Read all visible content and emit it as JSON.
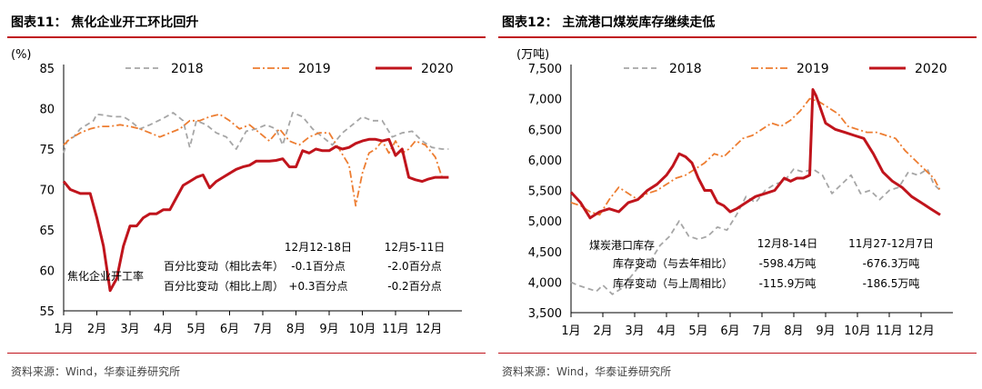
{
  "chart_data": [
    {
      "type": "line",
      "title": "图表11： 焦化企业开工环比回升",
      "ylabel": "(%)",
      "ylim": [
        55,
        85
      ],
      "yticks": [
        55,
        60,
        65,
        70,
        75,
        80,
        85
      ],
      "x_ticklabels": [
        "1月",
        "2月",
        "3月",
        "4月",
        "5月",
        "6月",
        "7月",
        "8月",
        "9月",
        "10月",
        "11月",
        "12月"
      ],
      "legend": "top",
      "series": [
        {
          "name": "2018",
          "style": "dashed",
          "color": "#a6a6a6",
          "x": [
            1.0,
            1.1,
            1.3,
            1.5,
            1.7,
            1.9,
            2.0,
            2.2,
            2.5,
            2.8,
            3.0,
            3.3,
            3.6,
            4.0,
            4.3,
            4.6,
            4.8,
            5.0,
            5.3,
            5.6,
            5.9,
            6.2,
            6.5,
            6.8,
            7.1,
            7.4,
            7.6,
            7.9,
            8.2,
            8.5,
            8.8,
            9.1,
            9.4,
            9.7,
            10.0,
            10.3,
            10.6,
            10.9,
            11.2,
            11.5,
            11.8,
            12.1,
            12.4,
            12.6
          ],
          "values": [
            74.5,
            76.0,
            76.5,
            77.5,
            78.0,
            78.5,
            79.3,
            79.2,
            79.0,
            79.0,
            78.5,
            77.5,
            78.0,
            78.8,
            79.5,
            78.5,
            75.2,
            78.5,
            78.0,
            77.0,
            76.5,
            75.0,
            77.2,
            77.5,
            78.0,
            77.5,
            75.5,
            79.5,
            79.0,
            77.5,
            76.5,
            75.5,
            77.0,
            78.0,
            79.0,
            78.5,
            78.5,
            76.5,
            77.0,
            77.2,
            76.0,
            75.2,
            75.0,
            75.0
          ]
        },
        {
          "name": "2019",
          "style": "dashdot",
          "color": "#ed7d31",
          "x": [
            1.0,
            1.2,
            1.5,
            1.8,
            2.1,
            2.4,
            2.7,
            3.0,
            3.3,
            3.6,
            3.9,
            4.2,
            4.5,
            4.8,
            5.1,
            5.4,
            5.7,
            6.0,
            6.3,
            6.6,
            6.9,
            7.2,
            7.5,
            7.8,
            8.1,
            8.4,
            8.7,
            9.0,
            9.3,
            9.6,
            9.8,
            10.0,
            10.2,
            10.4,
            10.6,
            10.8,
            11.0,
            11.2,
            11.4,
            11.6,
            11.9,
            12.2,
            12.4,
            12.6
          ],
          "values": [
            75.5,
            76.3,
            77.0,
            77.5,
            77.8,
            77.8,
            78.0,
            77.8,
            77.5,
            77.0,
            76.5,
            77.0,
            77.5,
            78.5,
            78.5,
            79.0,
            79.3,
            78.5,
            77.5,
            78.0,
            77.0,
            76.0,
            77.5,
            76.0,
            75.5,
            76.5,
            77.0,
            77.0,
            75.0,
            73.0,
            68.0,
            72.0,
            74.5,
            75.0,
            76.0,
            74.5,
            76.0,
            74.5,
            75.0,
            76.0,
            75.5,
            74.0,
            71.5,
            71.5
          ]
        },
        {
          "name": "2020",
          "style": "solid",
          "color": "#c0141c",
          "x": [
            1.0,
            1.2,
            1.5,
            1.8,
            2.0,
            2.2,
            2.4,
            2.6,
            2.8,
            3.0,
            3.2,
            3.4,
            3.6,
            3.8,
            4.0,
            4.2,
            4.4,
            4.6,
            4.8,
            5.0,
            5.2,
            5.4,
            5.6,
            5.8,
            6.0,
            6.2,
            6.4,
            6.6,
            6.8,
            7.0,
            7.2,
            7.4,
            7.6,
            7.8,
            8.0,
            8.2,
            8.4,
            8.6,
            8.8,
            9.0,
            9.2,
            9.4,
            9.6,
            9.8,
            10.0,
            10.2,
            10.4,
            10.6,
            10.8,
            11.0,
            11.2,
            11.4,
            11.6,
            11.8,
            12.0,
            12.2,
            12.4,
            12.6
          ],
          "values": [
            71.0,
            70.0,
            69.5,
            69.5,
            66.5,
            63.0,
            57.5,
            59.0,
            63.0,
            65.5,
            65.5,
            66.5,
            67.0,
            67.0,
            67.5,
            67.5,
            69.0,
            70.5,
            71.0,
            71.5,
            71.8,
            70.2,
            71.0,
            71.5,
            72.0,
            72.5,
            72.8,
            73.0,
            73.5,
            73.5,
            73.5,
            73.6,
            73.8,
            72.8,
            72.8,
            74.8,
            74.5,
            75.0,
            74.8,
            74.8,
            75.3,
            75.0,
            75.2,
            75.7,
            76.0,
            76.2,
            76.2,
            76.0,
            76.2,
            74.2,
            75.0,
            71.5,
            71.2,
            71.0,
            71.3,
            71.5,
            71.5,
            71.5
          ]
        }
      ],
      "annotation": {
        "label": "焦化企业开工率",
        "col_headers": [
          "12月12-18日",
          "12月5-11日"
        ],
        "rows": [
          {
            "label": "百分比变动（相比去年）",
            "v1": "-0.1百分点",
            "v2": "-2.0百分点"
          },
          {
            "label": "百分比变动（相比上周）",
            "v1": "+0.3百分点",
            "v2": "-0.2百分点"
          }
        ]
      },
      "source": "资料来源：Wind，华泰证券研究所"
    },
    {
      "type": "line",
      "title": "图表12： 主流港口煤炭库存继续走低",
      "ylabel": "(万吨)",
      "ylim": [
        3500,
        7500
      ],
      "yticks": [
        3500,
        4000,
        4500,
        5000,
        5500,
        6000,
        6500,
        7000,
        7500
      ],
      "x_ticklabels": [
        "1月",
        "2月",
        "3月",
        "4月",
        "5月",
        "6月",
        "7月",
        "8月",
        "9月",
        "10月",
        "11月",
        "12月"
      ],
      "legend": "top",
      "series": [
        {
          "name": "2018",
          "style": "dashed",
          "color": "#a6a6a6",
          "x": [
            1.0,
            1.2,
            1.5,
            1.8,
            2.0,
            2.3,
            2.6,
            2.9,
            3.2,
            3.5,
            3.8,
            4.1,
            4.4,
            4.7,
            5.0,
            5.3,
            5.6,
            5.9,
            6.2,
            6.5,
            6.8,
            7.1,
            7.4,
            7.7,
            8.0,
            8.3,
            8.6,
            8.9,
            9.2,
            9.5,
            9.8,
            10.1,
            10.4,
            10.7,
            11.0,
            11.3,
            11.6,
            11.9,
            12.2,
            12.4,
            12.6
          ],
          "values": [
            4000,
            3950,
            3900,
            3850,
            3950,
            3800,
            3900,
            4100,
            4300,
            4350,
            4600,
            4750,
            5000,
            4750,
            4700,
            4750,
            4900,
            4850,
            5100,
            5400,
            5300,
            5500,
            5600,
            5650,
            5850,
            5800,
            5850,
            5750,
            5450,
            5600,
            5750,
            5450,
            5500,
            5350,
            5500,
            5550,
            5800,
            5750,
            5850,
            5600,
            5500
          ]
        },
        {
          "name": "2019",
          "style": "dashdot",
          "color": "#ed7d31",
          "x": [
            1.0,
            1.3,
            1.6,
            1.9,
            2.2,
            2.5,
            2.8,
            3.1,
            3.4,
            3.7,
            4.0,
            4.3,
            4.6,
            4.9,
            5.2,
            5.5,
            5.8,
            6.1,
            6.4,
            6.7,
            7.0,
            7.3,
            7.6,
            7.9,
            8.2,
            8.5,
            8.8,
            9.1,
            9.4,
            9.7,
            10.0,
            10.3,
            10.6,
            10.9,
            11.2,
            11.5,
            11.8,
            12.1,
            12.4,
            12.6
          ],
          "values": [
            5300,
            5250,
            5150,
            5100,
            5350,
            5550,
            5450,
            5350,
            5450,
            5500,
            5600,
            5700,
            5750,
            5850,
            5950,
            6100,
            6050,
            6200,
            6350,
            6400,
            6500,
            6600,
            6550,
            6650,
            6800,
            7000,
            6950,
            6850,
            6750,
            6550,
            6500,
            6450,
            6450,
            6400,
            6350,
            6150,
            6000,
            5850,
            5700,
            5500
          ]
        },
        {
          "name": "2020",
          "style": "solid",
          "color": "#c0141c",
          "x": [
            1.0,
            1.3,
            1.6,
            1.9,
            2.2,
            2.5,
            2.8,
            3.1,
            3.4,
            3.7,
            4.0,
            4.2,
            4.4,
            4.6,
            4.8,
            5.0,
            5.2,
            5.4,
            5.6,
            5.8,
            6.0,
            6.2,
            6.5,
            6.8,
            7.1,
            7.4,
            7.7,
            7.9,
            8.1,
            8.3,
            8.5,
            8.6,
            8.7,
            8.8,
            9.0,
            9.3,
            9.6,
            9.9,
            10.2,
            10.5,
            10.8,
            11.1,
            11.4,
            11.7,
            12.0,
            12.3,
            12.6
          ],
          "values": [
            5470,
            5300,
            5050,
            5150,
            5200,
            5150,
            5300,
            5350,
            5500,
            5600,
            5750,
            5900,
            6100,
            6050,
            5950,
            5700,
            5500,
            5500,
            5300,
            5250,
            5150,
            5200,
            5300,
            5400,
            5450,
            5500,
            5700,
            5650,
            5700,
            5700,
            5750,
            7150,
            7050,
            6900,
            6600,
            6500,
            6450,
            6400,
            6350,
            6100,
            5800,
            5650,
            5550,
            5400,
            5300,
            5200,
            5100
          ]
        }
      ],
      "annotation": {
        "label": "煤炭港口库存",
        "col_headers": [
          "12月8-14日",
          "11月27-12月7日"
        ],
        "rows": [
          {
            "label": "库存变动（与去年相比）",
            "v1": "-598.4万吨",
            "v2": "-676.3万吨"
          },
          {
            "label": "库存变动（与上周相比）",
            "v1": "-115.9万吨",
            "v2": "-186.5万吨"
          }
        ]
      },
      "source": "资料来源：Wind，华泰证券研究所"
    }
  ]
}
